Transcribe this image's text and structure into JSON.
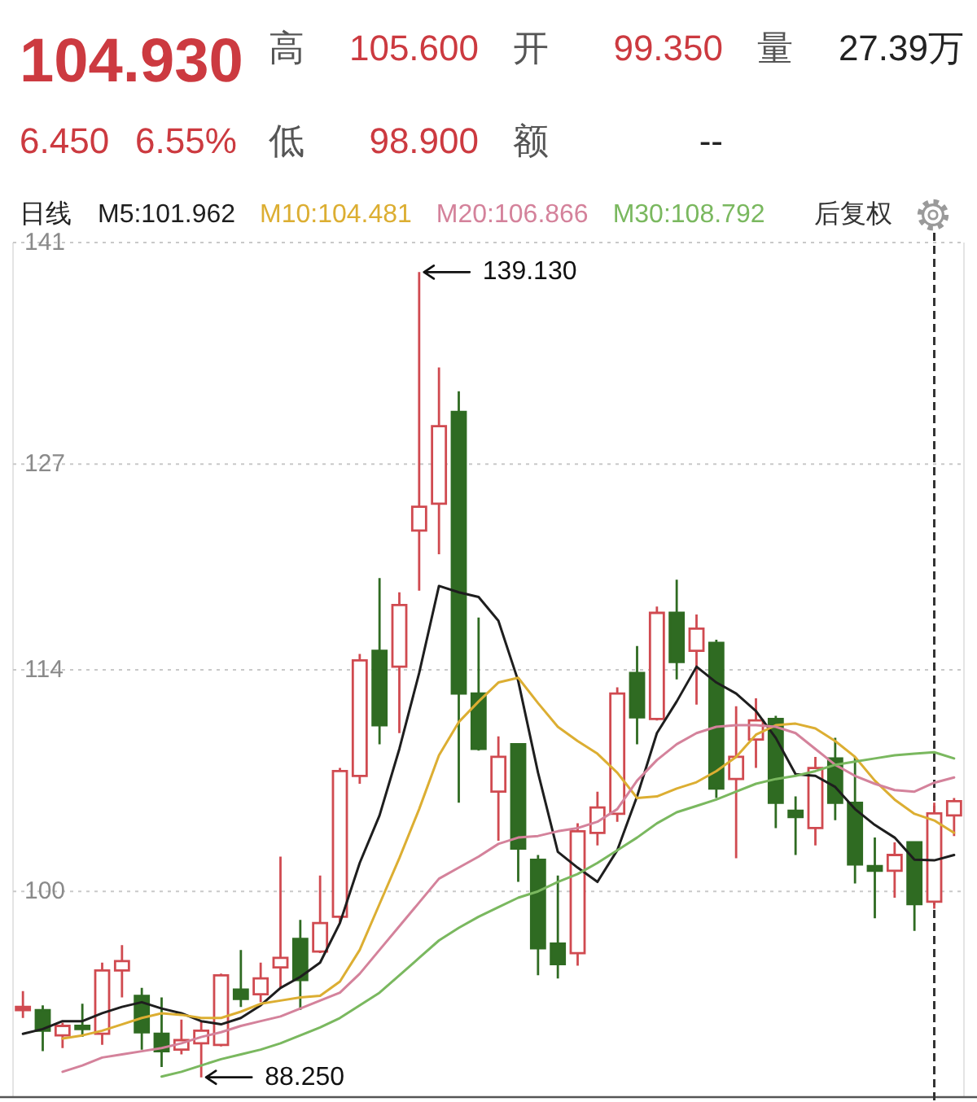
{
  "chart_data": {
    "type": "candlestick",
    "legend_title": "日线",
    "categories": [
      null,
      null,
      null,
      null,
      null,
      null,
      null,
      null,
      null,
      null,
      null,
      null,
      null,
      null,
      null,
      null,
      null,
      null,
      null,
      null,
      null,
      null,
      null,
      null,
      null,
      null,
      null,
      null,
      null,
      null,
      null,
      null,
      null,
      null,
      null,
      null,
      null,
      null,
      null,
      null,
      null,
      null,
      null,
      null,
      null,
      null,
      null,
      null
    ],
    "ohlc": [
      [
        92.5,
        93.7,
        92.0,
        92.7
      ],
      [
        92.5,
        92.8,
        89.9,
        91.2
      ],
      [
        90.9,
        91.7,
        90.1,
        91.5
      ],
      [
        91.5,
        92.9,
        90.8,
        91.3
      ],
      [
        91.0,
        95.5,
        90.3,
        95.0
      ],
      [
        95.0,
        96.6,
        93.3,
        95.6
      ],
      [
        93.4,
        93.9,
        90.0,
        91.1
      ],
      [
        91.0,
        93.3,
        88.9,
        89.9
      ],
      [
        90.0,
        91.9,
        89.7,
        90.6
      ],
      [
        90.4,
        91.8,
        88.25,
        91.2
      ],
      [
        90.3,
        94.8,
        90.2,
        94.7
      ],
      [
        93.8,
        96.3,
        92.7,
        93.2
      ],
      [
        93.5,
        95.5,
        93.0,
        94.5
      ],
      [
        95.2,
        102.2,
        93.9,
        95.8
      ],
      [
        97.0,
        98.2,
        92.5,
        94.4
      ],
      [
        96.2,
        101.0,
        96.1,
        98.0
      ],
      [
        98.4,
        107.8,
        98.0,
        107.6
      ],
      [
        107.3,
        115.0,
        106.8,
        114.6
      ],
      [
        115.2,
        119.8,
        109.3,
        110.5
      ],
      [
        114.2,
        118.9,
        110.0,
        118.1
      ],
      [
        122.8,
        139.13,
        119.0,
        124.3
      ],
      [
        124.5,
        133.1,
        121.3,
        129.4
      ],
      [
        130.3,
        131.6,
        105.6,
        112.5
      ],
      [
        112.5,
        117.3,
        108.9,
        109.0
      ],
      [
        106.3,
        109.8,
        103.2,
        108.5
      ],
      [
        109.3,
        109.3,
        100.6,
        102.7
      ],
      [
        102.0,
        102.3,
        94.7,
        96.4
      ],
      [
        96.7,
        101.0,
        94.5,
        95.4
      ],
      [
        96.1,
        104.3,
        95.3,
        103.8
      ],
      [
        103.7,
        106.3,
        102.9,
        105.3
      ],
      [
        104.9,
        112.9,
        104.4,
        112.5
      ],
      [
        113.8,
        115.5,
        109.3,
        111.0
      ],
      [
        110.9,
        118.0,
        110.8,
        117.6
      ],
      [
        117.6,
        119.7,
        113.4,
        114.5
      ],
      [
        115.2,
        117.5,
        111.8,
        116.6
      ],
      [
        115.7,
        115.9,
        105.9,
        106.5
      ],
      [
        107.1,
        111.7,
        102.1,
        108.5
      ],
      [
        109.6,
        112.2,
        107.8,
        110.8
      ],
      [
        110.9,
        111.1,
        104.0,
        105.6
      ],
      [
        105.1,
        106.0,
        102.3,
        104.7
      ],
      [
        104.0,
        108.5,
        102.9,
        107.8
      ],
      [
        108.4,
        109.7,
        104.5,
        105.6
      ],
      [
        105.6,
        108.5,
        100.5,
        101.7
      ],
      [
        101.6,
        103.4,
        98.3,
        101.3
      ],
      [
        101.3,
        103.1,
        99.6,
        102.3
      ],
      [
        103.1,
        103.1,
        97.5,
        99.2
      ],
      [
        99.35,
        105.6,
        98.9,
        104.93
      ],
      [
        104.8,
        105.9,
        103.5,
        105.7
      ]
    ],
    "colors": [
      "#d04a50",
      "#2f6b22",
      "#d04a50",
      "#2f6b22",
      "#d04a50",
      "#d04a50",
      "#2f6b22",
      "#2f6b22",
      "#d04a50",
      "#d04a50",
      "#d04a50",
      "#2f6b22",
      "#d04a50",
      "#d04a50",
      "#2f6b22",
      "#d04a50",
      "#d04a50",
      "#d04a50",
      "#2f6b22",
      "#d04a50",
      "#d04a50",
      "#d04a50",
      "#2f6b22",
      "#2f6b22",
      "#d04a50",
      "#2f6b22",
      "#2f6b22",
      "#2f6b22",
      "#d04a50",
      "#d04a50",
      "#d04a50",
      "#2f6b22",
      "#d04a50",
      "#2f6b22",
      "#d04a50",
      "#2f6b22",
      "#d04a50",
      "#d04a50",
      "#2f6b22",
      "#2f6b22",
      "#d04a50",
      "#2f6b22",
      "#2f6b22",
      "#2f6b22",
      "#d04a50",
      "#2f6b22",
      "#d04a50",
      "#d04a50"
    ],
    "series": [
      {
        "name": "M5:101.962",
        "type": "line",
        "color": "#1e1e1e",
        "values": [
          91.0,
          91.3,
          91.8,
          91.8,
          92.3,
          92.7,
          93.0,
          92.6,
          92.3,
          91.8,
          91.6,
          92.0,
          92.8,
          93.9,
          94.6,
          95.5,
          98.0,
          101.8,
          104.8,
          109.0,
          113.8,
          119.3,
          118.9,
          118.6,
          117.1,
          113.3,
          107.5,
          102.5,
          101.5,
          100.6,
          102.6,
          106.0,
          110.0,
          112.0,
          114.2,
          113.2,
          112.5,
          111.4,
          109.7,
          107.4,
          107.3,
          106.6,
          105.2,
          104.2,
          103.4,
          102.0,
          101.962,
          102.3
        ]
      },
      {
        "name": "M10:104.481",
        "type": "line",
        "color": "#dcae32",
        "values": [
          null,
          null,
          90.7,
          90.9,
          91.2,
          91.6,
          92.0,
          92.3,
          92.2,
          92.0,
          92.0,
          92.4,
          92.9,
          93.1,
          93.3,
          93.4,
          94.3,
          96.3,
          99.2,
          102.1,
          105.2,
          108.6,
          110.7,
          112.0,
          113.2,
          113.5,
          111.9,
          110.4,
          109.5,
          108.7,
          107.5,
          105.9,
          106.0,
          106.5,
          106.9,
          107.6,
          108.5,
          109.9,
          110.5,
          110.6,
          110.3,
          109.5,
          108.5,
          107.0,
          105.8,
          104.9,
          104.481,
          103.7
        ]
      },
      {
        "name": "M20:106.866",
        "type": "line",
        "color": "#d4829b",
        "values": [
          null,
          null,
          88.6,
          89.0,
          89.5,
          89.7,
          89.9,
          90.1,
          90.4,
          90.8,
          91.1,
          91.5,
          91.8,
          92.1,
          92.6,
          93.1,
          93.6,
          94.8,
          96.3,
          97.8,
          99.3,
          100.8,
          101.5,
          102.2,
          103.0,
          103.4,
          103.5,
          103.8,
          104.0,
          104.4,
          105.2,
          107.0,
          108.3,
          109.3,
          110.0,
          110.4,
          110.5,
          110.5,
          110.4,
          110.0,
          109.0,
          108.0,
          107.3,
          106.8,
          106.4,
          106.3,
          106.866,
          107.2
        ]
      },
      {
        "name": "M30:108.792",
        "type": "line",
        "color": "#7ab85f",
        "values": [
          null,
          null,
          null,
          null,
          null,
          null,
          null,
          88.3,
          88.6,
          89.0,
          89.4,
          89.7,
          90.0,
          90.4,
          90.9,
          91.4,
          92.0,
          92.8,
          93.6,
          94.7,
          95.8,
          96.9,
          97.7,
          98.4,
          99.0,
          99.6,
          100.0,
          100.6,
          101.1,
          101.8,
          102.6,
          103.4,
          104.3,
          105.0,
          105.4,
          105.8,
          106.3,
          106.8,
          107.1,
          107.3,
          107.6,
          108.0,
          108.2,
          108.4,
          108.6,
          108.7,
          108.792,
          108.4
        ]
      }
    ],
    "ylim": [
      87,
      141
    ],
    "yticks": [
      100,
      114,
      127,
      141
    ],
    "grid": "y",
    "tick_labels": "y",
    "legend": "top left",
    "annotations": [
      "104.930",
      "高",
      "105.600",
      "开",
      "99.350",
      "量",
      "27.39万",
      "6.450",
      "6.55%",
      "低",
      "98.900",
      "额",
      "--",
      "后复权",
      "139.130",
      "88.250"
    ]
  }
}
